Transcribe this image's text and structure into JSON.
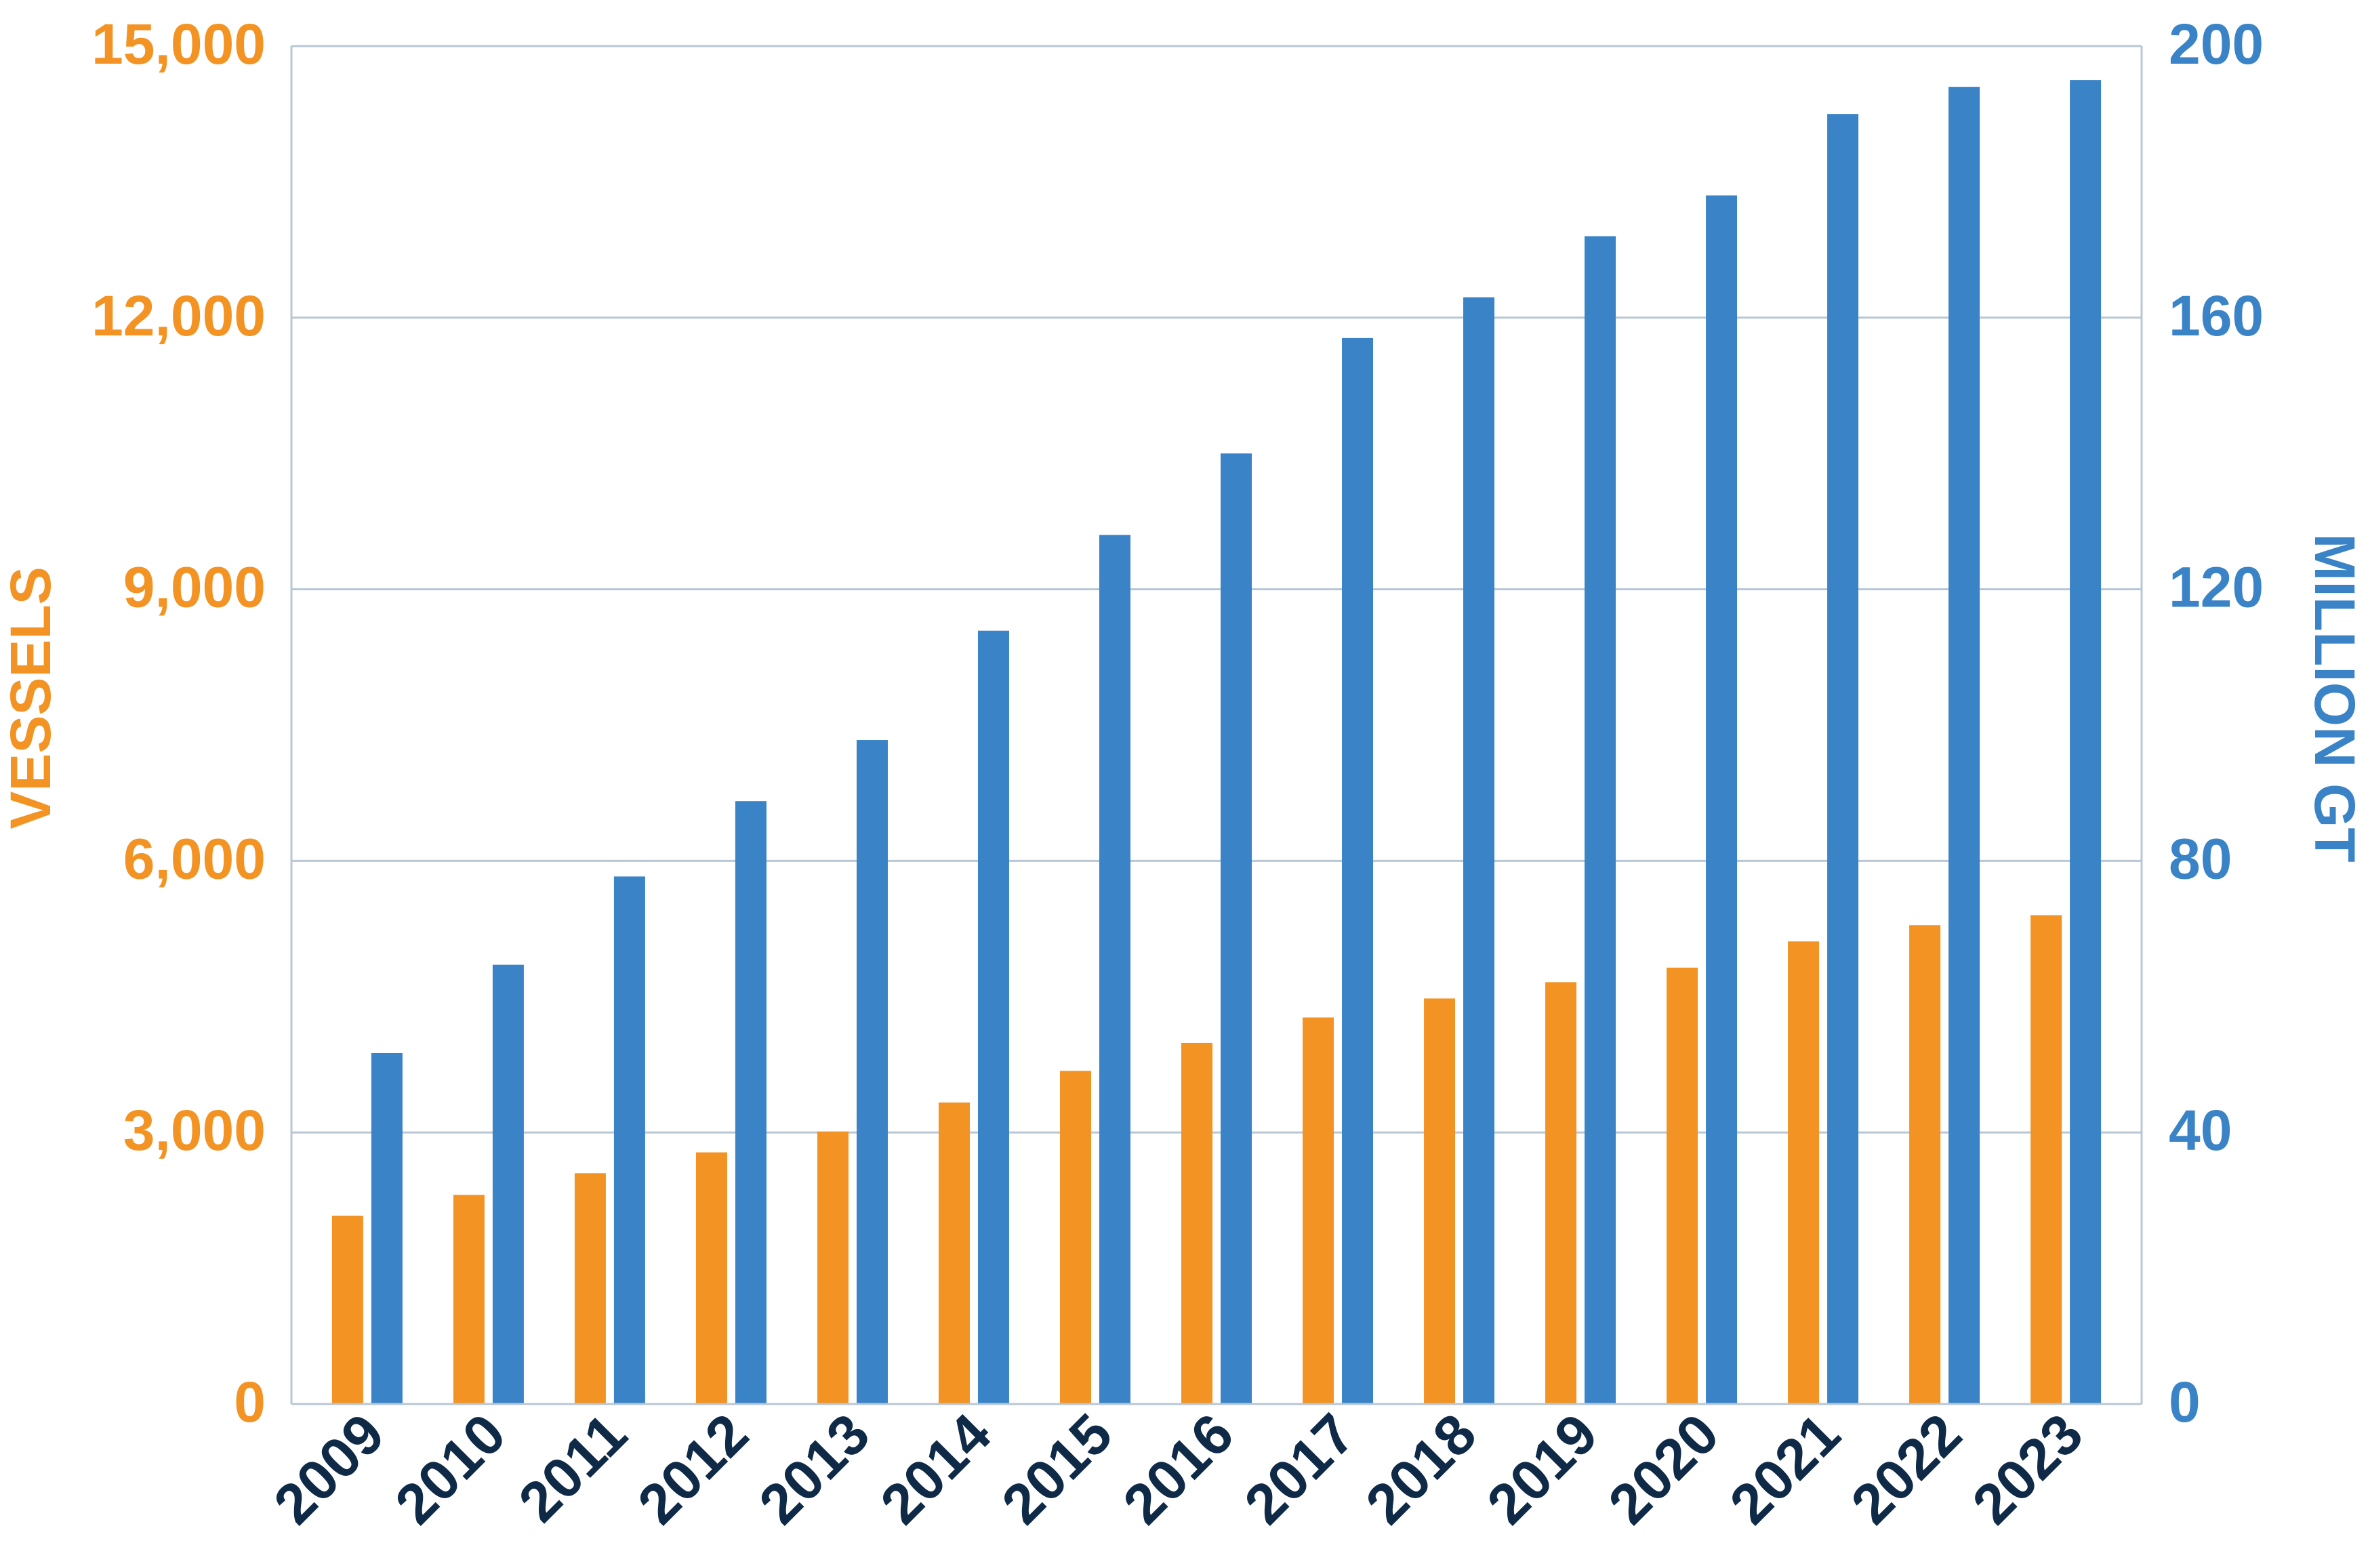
{
  "chart_data": {
    "type": "bar",
    "categories": [
      "2009",
      "2010",
      "2011",
      "2012",
      "2013",
      "2014",
      "2015",
      "2016",
      "2017",
      "2018",
      "2019",
      "2020",
      "2021",
      "2022",
      "2023"
    ],
    "series": [
      {
        "axis": "left",
        "color": "#F39323",
        "values": [
          2080,
          2310,
          2550,
          2780,
          3010,
          3330,
          3680,
          3990,
          4270,
          4480,
          4660,
          4820,
          5110,
          5290,
          5400
        ]
      },
      {
        "axis": "right",
        "color": "#3983C6",
        "values": [
          51.7,
          64.7,
          77.7,
          88.8,
          97.8,
          113.9,
          128.0,
          140.0,
          157.0,
          163.0,
          172.0,
          178.0,
          190.0,
          194.0,
          195.0
        ]
      }
    ],
    "y_left": {
      "label": "VESSELS",
      "color": "#F39323",
      "range": [
        0,
        15000
      ],
      "ticks": [
        0,
        3000,
        6000,
        9000,
        12000,
        15000
      ],
      "tick_labels": [
        "0",
        "3,000",
        "6,000",
        "9,000",
        "12,000",
        "15,000"
      ]
    },
    "y_right": {
      "label": "MILLION GT",
      "color": "#3983C6",
      "range": [
        0,
        200
      ],
      "ticks": [
        0,
        40,
        80,
        120,
        160,
        200
      ],
      "tick_labels": [
        "0",
        "40",
        "80",
        "120",
        "160",
        "200"
      ]
    },
    "x_label_color": "#0F2A47",
    "grid": true,
    "gridline_color": "#B9C7D4",
    "xlabel": "",
    "title": ""
  }
}
